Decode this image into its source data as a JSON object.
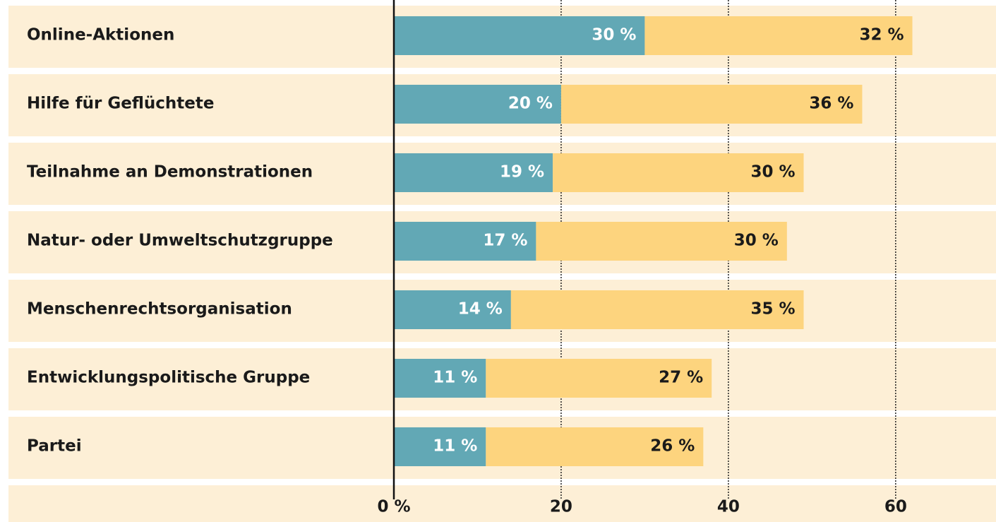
{
  "chart_data": {
    "type": "stacked-barh",
    "categories": [
      "Online-Aktionen",
      "Hilfe für Geflüchtete",
      "Teilnahme an Demonstrationen",
      "Natur- oder Umweltschutzgruppe",
      "Menschenrechtsorganisation",
      "Entwicklungspolitische Gruppe",
      "Partei"
    ],
    "series": [
      {
        "color": "#62a8b5",
        "values": [
          30,
          20,
          19,
          17,
          14,
          11,
          11
        ],
        "value_labels": [
          "30 %",
          "20 %",
          "19 %",
          "17 %",
          "14 %",
          "11 %",
          "11 %"
        ]
      },
      {
        "color": "#fdd47e",
        "values": [
          32,
          36,
          30,
          30,
          35,
          27,
          26
        ],
        "value_labels": [
          "32 %",
          "36 %",
          "30 %",
          "30 %",
          "35 %",
          "27 %",
          "26 %"
        ]
      }
    ],
    "xlim": [
      0,
      72
    ],
    "xticks": [
      {
        "value": 0,
        "label": "0 %"
      },
      20,
      40,
      60
    ],
    "grid": true
  }
}
